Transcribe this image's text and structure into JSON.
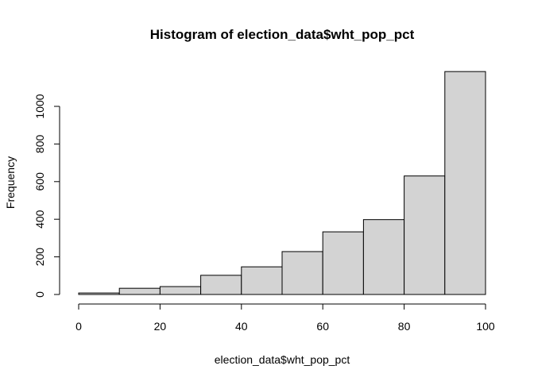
{
  "chart_data": {
    "type": "bar",
    "title": "Histogram of election_data$wht_pop_pct",
    "xlabel": "election_data$wht_pop_pct",
    "ylabel": "Frequency",
    "bins": [
      [
        0,
        10
      ],
      [
        10,
        20
      ],
      [
        20,
        30
      ],
      [
        30,
        40
      ],
      [
        40,
        50
      ],
      [
        50,
        60
      ],
      [
        60,
        70
      ],
      [
        70,
        80
      ],
      [
        80,
        90
      ],
      [
        90,
        100
      ]
    ],
    "values": [
      8,
      33,
      42,
      102,
      147,
      228,
      333,
      398,
      630,
      1185
    ],
    "xlim": [
      0,
      100
    ],
    "ylim": [
      0,
      1200
    ],
    "xticks": [
      0,
      20,
      40,
      60,
      80,
      100
    ],
    "yticks": [
      0,
      200,
      400,
      600,
      800,
      1000
    ],
    "bar_fill": "#d3d3d3",
    "bar_stroke": "#000000",
    "grid": false,
    "legend": "none"
  }
}
